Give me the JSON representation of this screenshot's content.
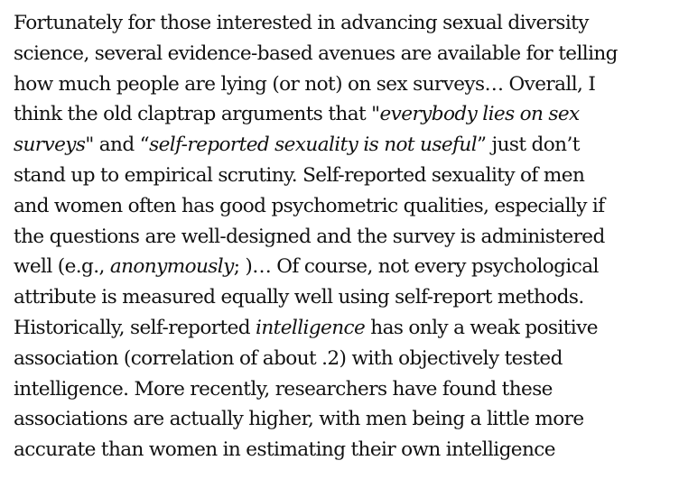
{
  "document": {
    "paragraph": [
      [
        {
          "t": "Fortunately for those interested in advancing sexual diversity"
        }
      ],
      [
        {
          "t": "science, several evidence-based avenues are available for telling"
        }
      ],
      [
        {
          "t": "how much people are lying (or not) on sex surveys… Overall, I"
        }
      ],
      [
        {
          "t": "think the old claptrap arguments that \""
        },
        {
          "t": "everybody lies on sex",
          "em": true
        }
      ],
      [
        {
          "t": "surveys",
          "em": true
        },
        {
          "t": "\" and “"
        },
        {
          "t": "self-reported sexuality is not useful",
          "em": true
        },
        {
          "t": "” just don’t"
        }
      ],
      [
        {
          "t": "stand up to empirical scrutiny. Self-reported sexuality of men"
        }
      ],
      [
        {
          "t": "and women often has good psychometric qualities, especially if"
        }
      ],
      [
        {
          "t": "the questions are well-designed and the survey is administered"
        }
      ],
      [
        {
          "t": "well (e.g., "
        },
        {
          "t": "anonymously",
          "em": true
        },
        {
          "t": "; )… Of course, not every psychological"
        }
      ],
      [
        {
          "t": "attribute is measured equally well using self-report methods."
        }
      ],
      [
        {
          "t": "Historically, self-reported "
        },
        {
          "t": "intelligence",
          "em": true
        },
        {
          "t": " has only a weak positive"
        }
      ],
      [
        {
          "t": "association (correlation of about .2) with objectively tested"
        }
      ],
      [
        {
          "t": "intelligence. More recently, researchers have found these"
        }
      ],
      [
        {
          "t": "associations are actually higher, with men being a little more"
        }
      ],
      [
        {
          "t": "accurate than women in estimating their own intelligence"
        }
      ]
    ]
  }
}
